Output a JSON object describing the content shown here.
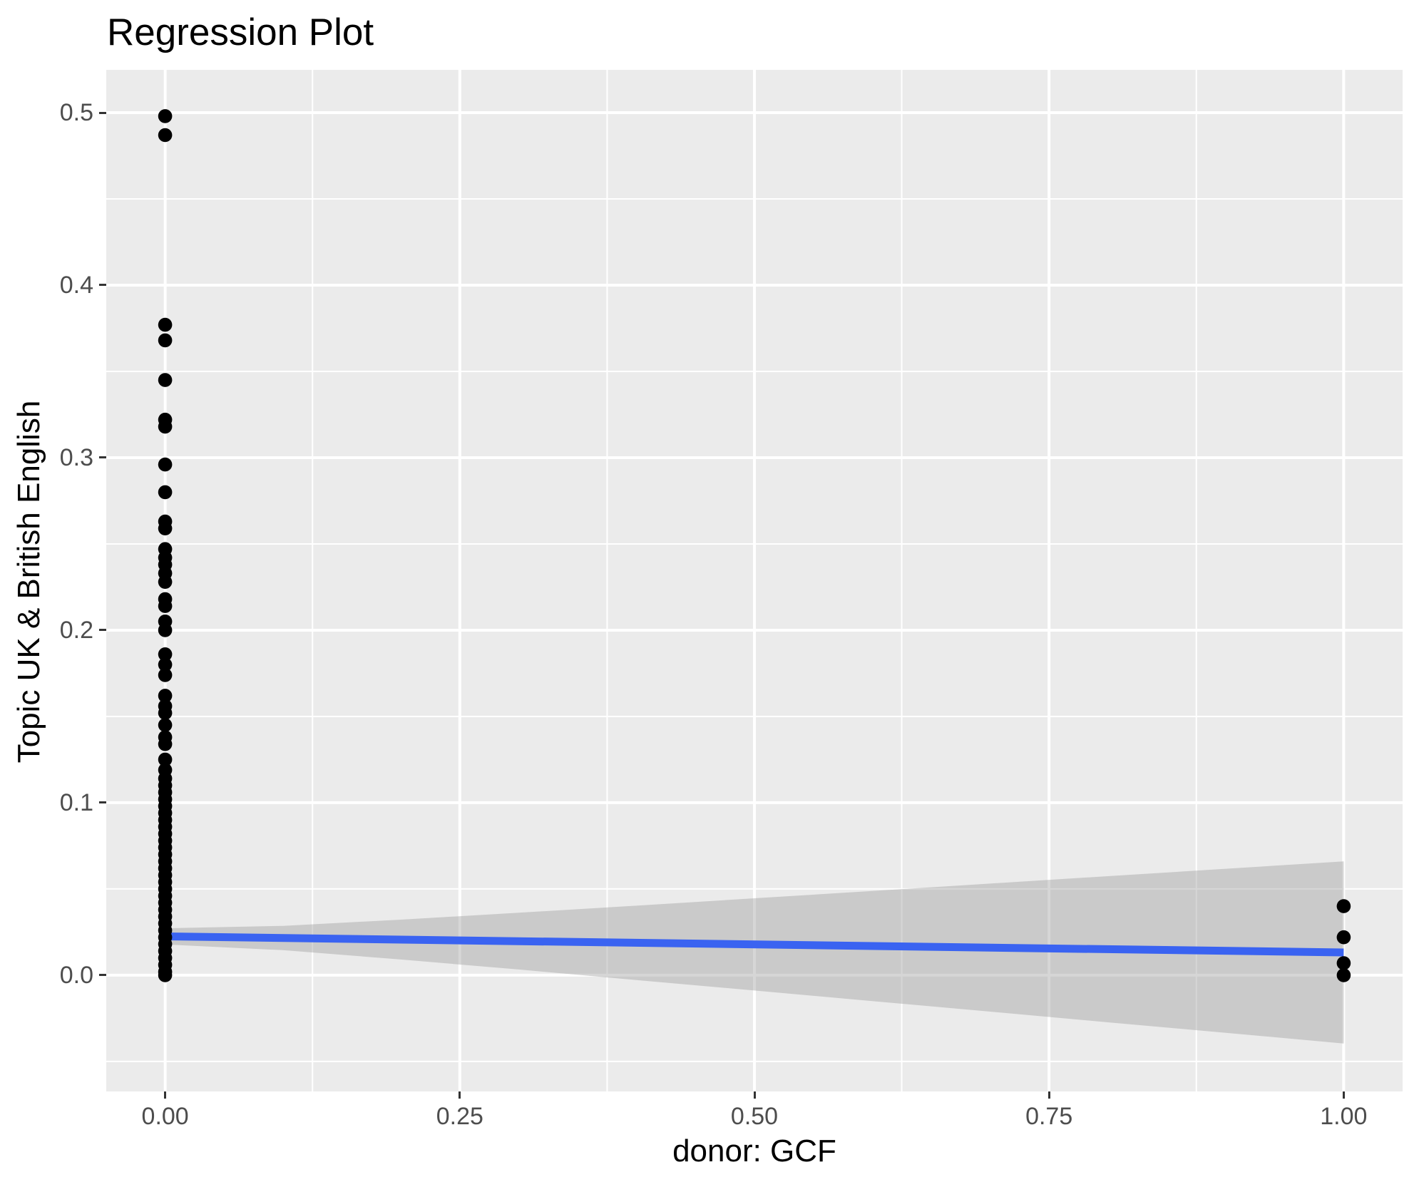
{
  "title": "Regression Plot",
  "axes": {
    "x": {
      "title": "donor: GCF",
      "tick_values": [
        0,
        0.25,
        0.5,
        0.75,
        1.0
      ],
      "tick_labels": [
        "0.00",
        "0.25",
        "0.50",
        "0.75",
        "1.00"
      ],
      "minor_ticks": [
        0.125,
        0.375,
        0.625,
        0.875
      ],
      "range": [
        -0.05,
        1.05
      ]
    },
    "y": {
      "title": "Topic UK & British English",
      "tick_values": [
        0,
        0.1,
        0.2,
        0.3,
        0.4,
        0.5
      ],
      "tick_labels": [
        "0.0",
        "0.1",
        "0.2",
        "0.3",
        "0.4",
        "0.5"
      ],
      "minor_ticks": [
        -0.05,
        0.05,
        0.15,
        0.25,
        0.35,
        0.45
      ],
      "range": [
        -0.0674,
        0.5248
      ]
    }
  },
  "colors": {
    "panel_bg": "#EBEBEB",
    "gridline": "#FFFFFF",
    "point": "#000000",
    "regression_line": "#3A63F1",
    "ci_band": "rgba(153,153,153,0.4)",
    "tick_text": "#4D4D4D",
    "tick_mark": "#333333",
    "title_text": "#000000"
  },
  "chart_data": {
    "type": "scatter",
    "title": "Regression Plot",
    "xlabel": "donor: GCF",
    "ylabel": "Topic UK & British English",
    "xlim": [
      -0.05,
      1.05
    ],
    "ylim": [
      -0.0674,
      0.5248
    ],
    "grid": true,
    "legend": false,
    "series": [
      {
        "name": "observations at donor GCF = 0",
        "type": "points",
        "x": 0,
        "y": [
          0.498,
          0.487,
          0.377,
          0.368,
          0.345,
          0.322,
          0.318,
          0.296,
          0.28,
          0.263,
          0.259,
          0.247,
          0.242,
          0.238,
          0.233,
          0.228,
          0.218,
          0.214,
          0.205,
          0.2,
          0.186,
          0.18,
          0.174,
          0.162,
          0.156,
          0.152,
          0.145,
          0.138,
          0.134,
          0.125,
          0.119,
          0.114,
          0.11,
          0.106,
          0.102,
          0.098,
          0.094,
          0.09,
          0.086,
          0.082,
          0.078,
          0.074,
          0.07,
          0.066,
          0.062,
          0.058,
          0.054,
          0.05,
          0.046,
          0.042,
          0.038,
          0.034,
          0.03,
          0.026,
          0.022,
          0.018,
          0.014,
          0.01,
          0.006,
          0.002,
          0.0
        ]
      },
      {
        "name": "observations at donor GCF = 1",
        "type": "points",
        "x": 1,
        "y": [
          0.04,
          0.022,
          0.007,
          0.0
        ]
      },
      {
        "name": "regression line",
        "type": "line",
        "x": [
          0,
          1
        ],
        "y": [
          0.0225,
          0.0132
        ]
      },
      {
        "name": "95% confidence band",
        "type": "band",
        "x": [
          0,
          0.1,
          0.2,
          0.3,
          0.4,
          0.5,
          0.6,
          0.7,
          0.8,
          0.9,
          1.0
        ],
        "upper": [
          0.0272,
          0.0286,
          0.0322,
          0.0362,
          0.0403,
          0.0446,
          0.0488,
          0.0531,
          0.0574,
          0.0617,
          0.066
        ],
        "lower": [
          0.0178,
          0.0145,
          0.0091,
          0.0033,
          -0.0028,
          -0.0089,
          -0.015,
          -0.0211,
          -0.0273,
          -0.0334,
          -0.0396
        ]
      }
    ]
  }
}
